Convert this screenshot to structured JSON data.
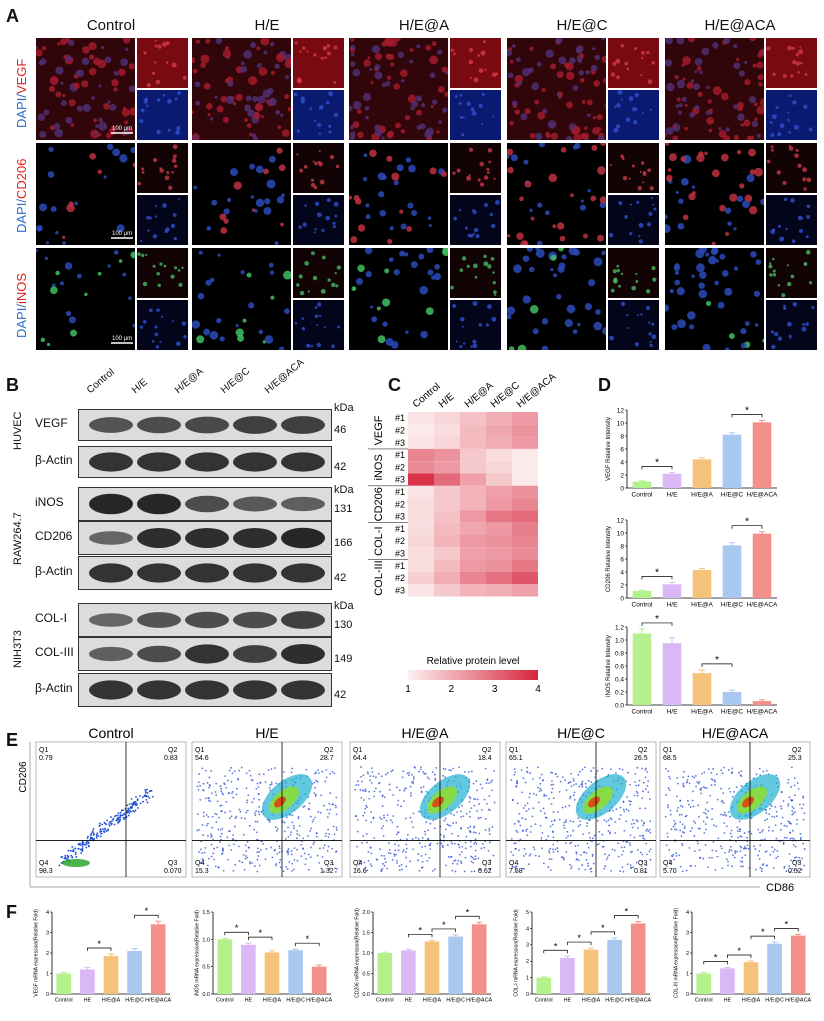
{
  "panels": {
    "A": "A",
    "B": "B",
    "C": "C",
    "D": "D",
    "E": "E",
    "F": "F"
  },
  "groups": [
    "Control",
    "H/E",
    "H/E@A",
    "H/E@C",
    "H/E@ACA"
  ],
  "panelA": {
    "rows": [
      {
        "prefix": "DAPI/",
        "marker": "VEGF",
        "marker_color": "#e02020",
        "scale": "100 μm"
      },
      {
        "prefix": "DAPI/",
        "marker": "CD206",
        "marker_color": "#e02020",
        "scale": "100 μm"
      },
      {
        "prefix": "DAPI/",
        "marker": "iNOS",
        "marker_color": "#e02020",
        "scale": "100 μm"
      }
    ],
    "dapi_color": "#2b6cc4"
  },
  "panelB": {
    "lanes": [
      "Control",
      "H/E",
      "H/E@A",
      "H/E@C",
      "H/E@ACA"
    ],
    "kda_label": "kDa",
    "blocks": [
      {
        "cell": "HUVEC",
        "bands": [
          {
            "name": "VEGF",
            "kda": "46"
          },
          {
            "name": "β-Actin",
            "kda": "42"
          }
        ]
      },
      {
        "cell": "RAW264.7",
        "bands": [
          {
            "name": "iNOS",
            "kda": "131"
          },
          {
            "name": "CD206",
            "kda": "166"
          },
          {
            "name": "β-Actin",
            "kda": "42"
          }
        ]
      },
      {
        "cell": "NIH3T3",
        "bands": [
          {
            "name": "COL-I",
            "kda": "130"
          },
          {
            "name": "COL-III",
            "kda": "149"
          },
          {
            "name": "β-Actin",
            "kda": "42"
          }
        ]
      }
    ]
  },
  "panelC": {
    "columns": [
      "Control",
      "H/E",
      "H/E@A",
      "H/E@C",
      "H/E@ACA"
    ],
    "groups": [
      {
        "name": "VEGF",
        "reps": [
          "#1",
          "#2",
          "#3"
        ]
      },
      {
        "name": "iNOS",
        "reps": [
          "#1",
          "#2",
          "#3"
        ]
      },
      {
        "name": "CD206",
        "reps": [
          "#1",
          "#2",
          "#3"
        ]
      },
      {
        "name": "COL-I",
        "reps": [
          "#1",
          "#2",
          "#3"
        ]
      },
      {
        "name": "COL-III",
        "reps": [
          "#1",
          "#2",
          "#3"
        ]
      }
    ],
    "values": [
      [
        1.2,
        1.4,
        1.7,
        2.0,
        2.3
      ],
      [
        1.1,
        1.3,
        1.8,
        2.1,
        2.4
      ],
      [
        1.2,
        1.4,
        1.8,
        2.0,
        2.3
      ],
      [
        2.6,
        2.4,
        1.6,
        1.3,
        1.1
      ],
      [
        2.5,
        2.3,
        1.6,
        1.4,
        1.1
      ],
      [
        3.8,
        3.0,
        2.2,
        1.6,
        1.1
      ],
      [
        1.2,
        1.6,
        1.9,
        2.2,
        2.4
      ],
      [
        1.3,
        1.6,
        1.9,
        2.3,
        2.6
      ],
      [
        1.3,
        1.7,
        2.3,
        2.8,
        3.0
      ],
      [
        1.3,
        1.8,
        2.1,
        2.3,
        2.7
      ],
      [
        1.4,
        1.9,
        2.3,
        2.4,
        2.6
      ],
      [
        1.3,
        1.6,
        2.2,
        2.3,
        2.5
      ],
      [
        1.3,
        1.8,
        2.3,
        2.4,
        2.8
      ],
      [
        1.5,
        2.0,
        2.6,
        2.9,
        3.3
      ],
      [
        1.2,
        1.6,
        1.9,
        2.0,
        2.2
      ]
    ],
    "legend_title": "Relative protein level",
    "legend_ticks": [
      "1",
      "2",
      "3",
      "4"
    ],
    "color_low": "#fdf0f0",
    "color_high": "#d7263d"
  },
  "chart_data": [
    {
      "type": "bar",
      "ylabel": "VEGF Relative Intensity",
      "categories": [
        "Control",
        "H/E",
        "H/E@A",
        "H/E@C",
        "H/E@ACA"
      ],
      "values": [
        1.0,
        2.2,
        4.4,
        8.2,
        10.1
      ],
      "errors": [
        0.1,
        0.2,
        0.25,
        0.3,
        0.3
      ],
      "ylim": [
        0,
        12
      ],
      "ticks": [
        "0",
        "2",
        "4",
        "6",
        "8",
        "10",
        "12"
      ],
      "sig": [
        [
          0,
          1
        ],
        [
          3,
          4
        ]
      ],
      "colors": [
        "#b4f08c",
        "#d9b8f5",
        "#f5c27a",
        "#a8c8f0",
        "#f4908a"
      ]
    },
    {
      "type": "bar",
      "ylabel": "CD206 Relative Intensity",
      "categories": [
        "Control",
        "H/E",
        "H/E@A",
        "H/E@C",
        "H/E@ACA"
      ],
      "values": [
        1.1,
        2.1,
        4.3,
        8.1,
        9.9
      ],
      "errors": [
        0.1,
        0.3,
        0.25,
        0.4,
        0.3
      ],
      "ylim": [
        0,
        12
      ],
      "ticks": [
        "0",
        "2",
        "4",
        "6",
        "8",
        "10",
        "12"
      ],
      "sig": [
        [
          0,
          1
        ],
        [
          3,
          4
        ]
      ],
      "colors": [
        "#b4f08c",
        "#d9b8f5",
        "#f5c27a",
        "#a8c8f0",
        "#f4908a"
      ]
    },
    {
      "type": "bar",
      "ylabel": "iNOS Relative Intensity",
      "categories": [
        "Control",
        "H/E",
        "H/E@A",
        "H/E@C",
        "H/E@ACA"
      ],
      "values": [
        1.1,
        0.95,
        0.49,
        0.2,
        0.06
      ],
      "errors": [
        0.07,
        0.09,
        0.05,
        0.03,
        0.02
      ],
      "ylim": [
        0,
        1.2
      ],
      "ticks": [
        "0.0",
        "0.2",
        "0.4",
        "0.6",
        "0.8",
        "1.0",
        "1.2"
      ],
      "sig": [
        [
          0,
          1
        ],
        [
          2,
          3
        ]
      ],
      "colors": [
        "#b4f08c",
        "#d9b8f5",
        "#f5c27a",
        "#a8c8f0",
        "#f4908a"
      ]
    },
    {
      "type": "bar",
      "ylabel": "VEGF mRNA expression(Relative Fold)",
      "categories": [
        "Control",
        "HE",
        "H/E@A",
        "H/E@C",
        "H/E@ACA"
      ],
      "values": [
        1.0,
        1.2,
        1.85,
        2.1,
        3.4
      ],
      "errors": [
        0.05,
        0.1,
        0.1,
        0.12,
        0.15
      ],
      "ylim": [
        0,
        4
      ],
      "ticks": [
        "0",
        "1",
        "2",
        "3",
        "4"
      ],
      "sig": [
        [
          1,
          2
        ],
        [
          3,
          4
        ]
      ],
      "colors": [
        "#b4f08c",
        "#d9b8f5",
        "#f5c27a",
        "#a8c8f0",
        "#f4908a"
      ]
    },
    {
      "type": "bar",
      "ylabel": "iNOS mRNA expression(Relative Fold)",
      "categories": [
        "Control",
        "HE",
        "H/E@A",
        "H/E@C",
        "H/E@ACA"
      ],
      "values": [
        1.0,
        0.9,
        0.76,
        0.8,
        0.5
      ],
      "errors": [
        0.02,
        0.03,
        0.03,
        0.02,
        0.03
      ],
      "ylim": [
        0,
        1.5
      ],
      "ticks": [
        "0.0",
        "0.5",
        "1.0",
        "1.5"
      ],
      "sig": [
        [
          0,
          1
        ],
        [
          1,
          2
        ],
        [
          3,
          4
        ]
      ],
      "colors": [
        "#b4f08c",
        "#d9b8f5",
        "#f5c27a",
        "#a8c8f0",
        "#f4908a"
      ]
    },
    {
      "type": "bar",
      "ylabel": "CD206 mRNA expression(Relative Fold)",
      "categories": [
        "Control",
        "HE",
        "H/E@A",
        "H/E@C",
        "H/E@ACA"
      ],
      "values": [
        1.0,
        1.06,
        1.28,
        1.4,
        1.7
      ],
      "errors": [
        0.02,
        0.03,
        0.03,
        0.04,
        0.05
      ],
      "ylim": [
        0,
        2
      ],
      "ticks": [
        "0.0",
        "0.5",
        "1.0",
        "1.5",
        "2.0"
      ],
      "sig": [
        [
          1,
          2
        ],
        [
          2,
          3
        ],
        [
          3,
          4
        ]
      ],
      "colors": [
        "#b4f08c",
        "#d9b8f5",
        "#f5c27a",
        "#a8c8f0",
        "#f4908a"
      ]
    },
    {
      "type": "bar",
      "ylabel": "COL-I mRNA expression(Relative Fold)",
      "categories": [
        "Control",
        "HE",
        "H/E@A",
        "H/E@C",
        "H/E@ACA"
      ],
      "values": [
        1.0,
        2.2,
        2.7,
        3.3,
        4.3
      ],
      "errors": [
        0.05,
        0.1,
        0.1,
        0.12,
        0.12
      ],
      "ylim": [
        0,
        5
      ],
      "ticks": [
        "0",
        "1",
        "2",
        "3",
        "4",
        "5"
      ],
      "sig": [
        [
          0,
          1
        ],
        [
          1,
          2
        ],
        [
          2,
          3
        ],
        [
          3,
          4
        ]
      ],
      "colors": [
        "#b4f08c",
        "#d9b8f5",
        "#f5c27a",
        "#a8c8f0",
        "#f4908a"
      ]
    },
    {
      "type": "bar",
      "ylabel": "COL-III mRNA expression(Relative Fold)",
      "categories": [
        "Control",
        "HE",
        "H/E@A",
        "H/E@C",
        "H/E@ACA"
      ],
      "values": [
        1.0,
        1.25,
        1.55,
        2.45,
        2.85
      ],
      "errors": [
        0.05,
        0.05,
        0.06,
        0.08,
        0.06
      ],
      "ylim": [
        0,
        4
      ],
      "ticks": [
        "0",
        "1",
        "2",
        "3",
        "4"
      ],
      "sig": [
        [
          0,
          1
        ],
        [
          1,
          2
        ],
        [
          2,
          3
        ],
        [
          3,
          4
        ]
      ],
      "colors": [
        "#b4f08c",
        "#d9b8f5",
        "#f5c27a",
        "#a8c8f0",
        "#f4908a"
      ]
    }
  ],
  "sig_mark": "*",
  "panelE": {
    "ylabel": "CD206",
    "xlabel": "CD86",
    "plots": [
      {
        "title": "Control",
        "q1": "0.79",
        "q2": "0.83",
        "q3": "0.070",
        "q4": "98.3",
        "q1l": "Q1",
        "q2l": "Q2",
        "q3l": "Q3",
        "q4l": "Q4"
      },
      {
        "title": "H/E",
        "q1": "54.6",
        "q2": "28.7",
        "q3": "1.32",
        "q4": "15.3",
        "q1l": "Q1",
        "q2l": "Q2",
        "q3l": "Q3",
        "q4l": "Q4"
      },
      {
        "title": "H/E@A",
        "q1": "64.4",
        "q2": "18.4",
        "q3": "0.62",
        "q4": "16.6",
        "q1l": "Q1",
        "q2l": "Q2",
        "q3l": "Q3",
        "q4l": "Q4"
      },
      {
        "title": "H/E@C",
        "q1": "65.1",
        "q2": "26.5",
        "q3": "0.81",
        "q4": "7.58",
        "q1l": "Q1",
        "q2l": "Q2",
        "q3l": "Q3",
        "q4l": "Q4"
      },
      {
        "title": "H/E@ACA",
        "q1": "68.5",
        "q2": "25.3",
        "q3": "0.52",
        "q4": "5.70",
        "q1l": "Q1",
        "q2l": "Q2",
        "q3l": "Q3",
        "q4l": "Q4"
      }
    ]
  }
}
